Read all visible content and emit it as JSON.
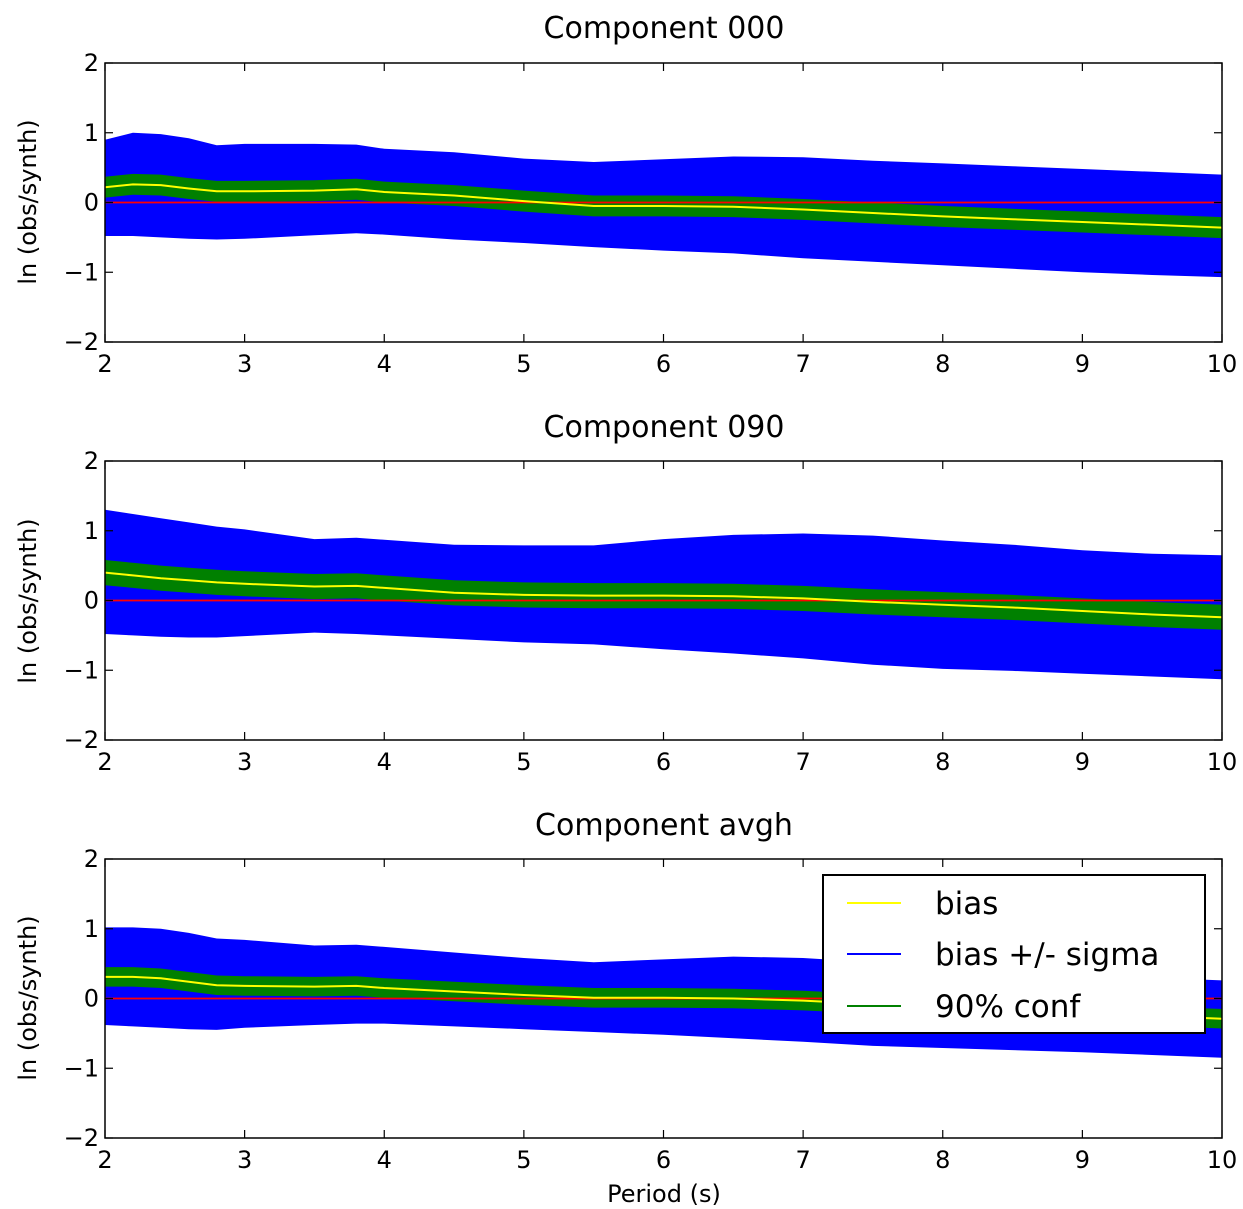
{
  "figure": {
    "xlabel": "Period (s)",
    "legend": {
      "placement": "upper-right of bottom panel",
      "entries": [
        {
          "label": "bias",
          "color": "#ffff00"
        },
        {
          "label": "bias +/- sigma",
          "color": "#0000ff"
        },
        {
          "label": "90% conf",
          "color": "#008000"
        }
      ]
    },
    "colors": {
      "sigma_band": "#0000ff",
      "conf_band": "#008000",
      "bias_line": "#ffff00",
      "zero_line": "#ff0000"
    }
  },
  "chart_data": [
    {
      "type": "area",
      "title": "Component 000",
      "xlabel": "",
      "ylabel": "ln (obs/synth)",
      "xlim": [
        2,
        10
      ],
      "ylim": [
        -2,
        2
      ],
      "xticks": [
        "2",
        "3",
        "4",
        "5",
        "6",
        "7",
        "8",
        "9",
        "10"
      ],
      "yticks": [
        "−2",
        "−1",
        "0",
        "1",
        "2"
      ],
      "x": [
        2.0,
        2.2,
        2.4,
        2.6,
        2.8,
        3.0,
        3.5,
        3.8,
        4.0,
        4.5,
        5.0,
        5.5,
        6.0,
        6.5,
        7.0,
        7.5,
        8.0,
        8.5,
        9.0,
        9.5,
        10.0
      ],
      "series": [
        {
          "name": "bias",
          "values": [
            0.22,
            0.26,
            0.25,
            0.2,
            0.16,
            0.16,
            0.17,
            0.19,
            0.15,
            0.1,
            0.02,
            -0.05,
            -0.05,
            -0.06,
            -0.1,
            -0.15,
            -0.2,
            -0.24,
            -0.28,
            -0.32,
            -0.36
          ]
        },
        {
          "name": "bias + sigma",
          "values": [
            0.9,
            1.0,
            0.98,
            0.92,
            0.82,
            0.84,
            0.84,
            0.83,
            0.77,
            0.72,
            0.63,
            0.58,
            0.62,
            0.66,
            0.65,
            0.6,
            0.56,
            0.52,
            0.48,
            0.44,
            0.4
          ]
        },
        {
          "name": "bias - sigma",
          "values": [
            -0.48,
            -0.48,
            -0.5,
            -0.52,
            -0.53,
            -0.52,
            -0.47,
            -0.44,
            -0.46,
            -0.53,
            -0.58,
            -0.64,
            -0.69,
            -0.73,
            -0.8,
            -0.85,
            -0.9,
            -0.95,
            -1.0,
            -1.04,
            -1.07
          ]
        },
        {
          "name": "90% conf upper",
          "values": [
            0.37,
            0.41,
            0.4,
            0.35,
            0.31,
            0.31,
            0.32,
            0.34,
            0.3,
            0.25,
            0.17,
            0.1,
            0.1,
            0.09,
            0.05,
            0.0,
            -0.05,
            -0.09,
            -0.13,
            -0.17,
            -0.21
          ]
        },
        {
          "name": "90% conf lower",
          "values": [
            0.07,
            0.11,
            0.1,
            0.05,
            0.01,
            0.01,
            0.02,
            0.04,
            0.0,
            -0.05,
            -0.13,
            -0.2,
            -0.2,
            -0.21,
            -0.25,
            -0.3,
            -0.35,
            -0.39,
            -0.43,
            -0.47,
            -0.51
          ]
        }
      ]
    },
    {
      "type": "area",
      "title": "Component 090",
      "xlabel": "",
      "ylabel": "ln (obs/synth)",
      "xlim": [
        2,
        10
      ],
      "ylim": [
        -2,
        2
      ],
      "xticks": [
        "2",
        "3",
        "4",
        "5",
        "6",
        "7",
        "8",
        "9",
        "10"
      ],
      "yticks": [
        "−2",
        "−1",
        "0",
        "1",
        "2"
      ],
      "x": [
        2.0,
        2.2,
        2.4,
        2.6,
        2.8,
        3.0,
        3.5,
        3.8,
        4.0,
        4.5,
        5.0,
        5.5,
        6.0,
        6.5,
        7.0,
        7.5,
        8.0,
        8.5,
        9.0,
        9.5,
        10.0
      ],
      "series": [
        {
          "name": "bias",
          "values": [
            0.4,
            0.36,
            0.32,
            0.29,
            0.26,
            0.24,
            0.2,
            0.21,
            0.18,
            0.11,
            0.08,
            0.07,
            0.07,
            0.06,
            0.03,
            -0.02,
            -0.06,
            -0.1,
            -0.15,
            -0.2,
            -0.24
          ]
        },
        {
          "name": "bias + sigma",
          "values": [
            1.3,
            1.24,
            1.18,
            1.12,
            1.06,
            1.02,
            0.88,
            0.9,
            0.87,
            0.8,
            0.79,
            0.79,
            0.88,
            0.94,
            0.96,
            0.93,
            0.86,
            0.8,
            0.72,
            0.67,
            0.65
          ]
        },
        {
          "name": "bias - sigma",
          "values": [
            -0.48,
            -0.5,
            -0.52,
            -0.53,
            -0.53,
            -0.51,
            -0.46,
            -0.48,
            -0.5,
            -0.55,
            -0.6,
            -0.63,
            -0.7,
            -0.76,
            -0.83,
            -0.92,
            -0.98,
            -1.01,
            -1.05,
            -1.09,
            -1.13
          ]
        },
        {
          "name": "90% conf upper",
          "values": [
            0.58,
            0.54,
            0.5,
            0.47,
            0.44,
            0.42,
            0.38,
            0.39,
            0.36,
            0.29,
            0.26,
            0.25,
            0.25,
            0.24,
            0.21,
            0.16,
            0.12,
            0.08,
            0.03,
            -0.02,
            -0.06
          ]
        },
        {
          "name": "90% conf lower",
          "values": [
            0.22,
            0.18,
            0.14,
            0.11,
            0.08,
            0.06,
            0.02,
            0.03,
            0.0,
            -0.07,
            -0.1,
            -0.11,
            -0.11,
            -0.12,
            -0.15,
            -0.2,
            -0.24,
            -0.28,
            -0.33,
            -0.38,
            -0.42
          ]
        }
      ]
    },
    {
      "type": "area",
      "title": "Component avgh",
      "xlabel": "Period (s)",
      "ylabel": "ln (obs/synth)",
      "xlim": [
        2,
        10
      ],
      "ylim": [
        -2,
        2
      ],
      "xticks": [
        "2",
        "3",
        "4",
        "5",
        "6",
        "7",
        "8",
        "9",
        "10"
      ],
      "yticks": [
        "−2",
        "−1",
        "0",
        "1",
        "2"
      ],
      "x": [
        2.0,
        2.2,
        2.4,
        2.6,
        2.8,
        3.0,
        3.5,
        3.8,
        4.0,
        4.5,
        5.0,
        5.5,
        6.0,
        6.5,
        7.0,
        7.5,
        8.0,
        8.5,
        9.0,
        9.5,
        10.0
      ],
      "series": [
        {
          "name": "bias",
          "values": [
            0.31,
            0.31,
            0.29,
            0.24,
            0.19,
            0.18,
            0.17,
            0.18,
            0.15,
            0.1,
            0.05,
            0.01,
            0.01,
            0.0,
            -0.03,
            -0.08,
            -0.13,
            -0.17,
            -0.21,
            -0.25,
            -0.29
          ]
        },
        {
          "name": "bias + sigma",
          "values": [
            1.02,
            1.02,
            1.0,
            0.94,
            0.86,
            0.84,
            0.76,
            0.77,
            0.74,
            0.66,
            0.58,
            0.52,
            0.56,
            0.6,
            0.58,
            0.52,
            0.45,
            0.4,
            0.35,
            0.3,
            0.26
          ]
        },
        {
          "name": "bias - sigma",
          "values": [
            -0.38,
            -0.4,
            -0.42,
            -0.44,
            -0.45,
            -0.42,
            -0.38,
            -0.36,
            -0.36,
            -0.4,
            -0.44,
            -0.48,
            -0.52,
            -0.57,
            -0.62,
            -0.68,
            -0.71,
            -0.74,
            -0.77,
            -0.81,
            -0.85
          ]
        },
        {
          "name": "90% conf upper",
          "values": [
            0.45,
            0.45,
            0.43,
            0.38,
            0.33,
            0.32,
            0.31,
            0.32,
            0.29,
            0.24,
            0.19,
            0.15,
            0.15,
            0.14,
            0.11,
            0.06,
            0.01,
            -0.03,
            -0.07,
            -0.11,
            -0.15
          ]
        },
        {
          "name": "90% conf lower",
          "values": [
            0.17,
            0.17,
            0.15,
            0.1,
            0.05,
            0.04,
            0.03,
            0.04,
            0.01,
            -0.04,
            -0.09,
            -0.13,
            -0.13,
            -0.14,
            -0.17,
            -0.22,
            -0.27,
            -0.31,
            -0.35,
            -0.39,
            -0.43
          ]
        }
      ]
    }
  ]
}
